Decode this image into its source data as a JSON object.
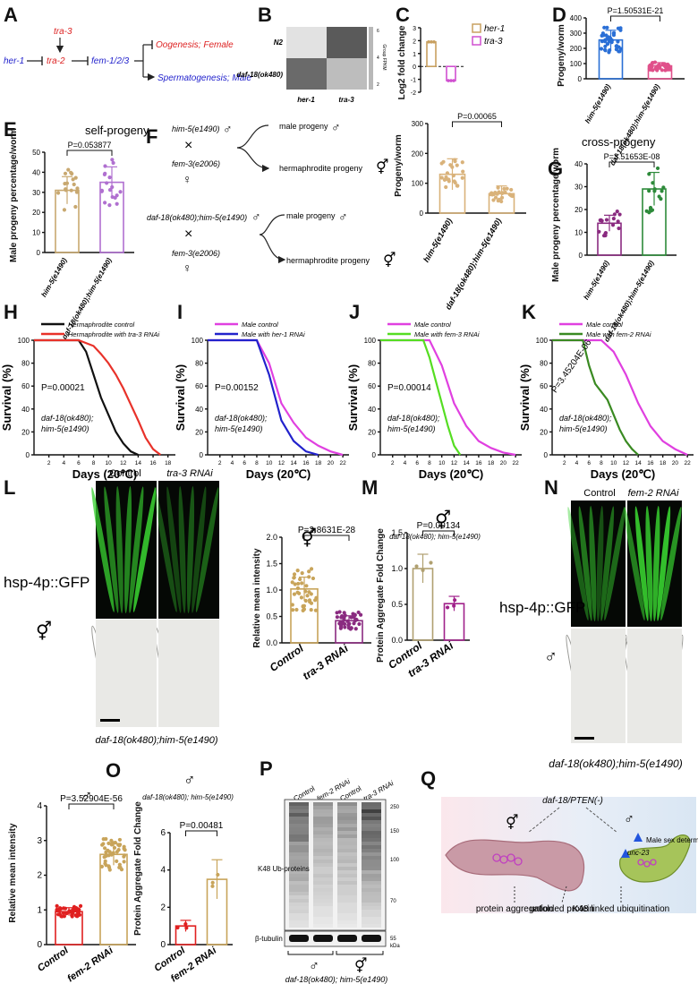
{
  "panels": [
    "A",
    "B",
    "C",
    "D",
    "E",
    "F",
    "G",
    "H",
    "I",
    "J",
    "K",
    "L",
    "M",
    "N",
    "O",
    "P",
    "Q"
  ],
  "A": {
    "her1": "her-1",
    "tra3": "tra-3",
    "tra2": "tra-2",
    "fem": "fem-1/2/3",
    "oogenesis": "Oogenesis; Female",
    "spermatogenesis": "Spermatogenesis; Male"
  },
  "B": {
    "rows": [
      "N2",
      "daf-18(ok480)"
    ],
    "cols": [
      "her-1",
      "tra-3"
    ],
    "scale_label": "Group FPKM",
    "scale_ticks": [
      "6",
      "4",
      "2"
    ],
    "cells": [
      [
        "#e2e2e2",
        "#5a5a5a"
      ],
      [
        "#6a6a6a",
        "#bdbdbd"
      ]
    ]
  },
  "C": {
    "ylabel": "Log2 fold change",
    "y_ticks": [
      "3",
      "2",
      "1",
      "0",
      "-1",
      "-2"
    ],
    "legend": [
      "her-1",
      "tra-3"
    ],
    "colors": [
      "#c8a060",
      "#d050d0"
    ]
  },
  "D": {
    "pvalue": "P=1.50531E-21",
    "ylabel": "Progeny/worm",
    "y_ticks": [
      "0",
      "100",
      "200",
      "300",
      "400"
    ],
    "xcats": [
      "him-5(e1490)",
      "daf-18(ok480);him-5(e1490)"
    ]
  },
  "E": {
    "title": "self-progeny",
    "pvalue": "P=0.053877",
    "ylabel": "Male progeny percentage/worm",
    "y_ticks": [
      "0",
      "10",
      "20",
      "30",
      "40",
      "50"
    ],
    "xcats": [
      "him-5(e1490)",
      "daf-18(ok480);him-5(e1490)"
    ]
  },
  "F": {
    "g1": "him-5(e1490)",
    "g2": "fem-3(e2006)",
    "g3": "daf-18(ok480);him-5(e1490)",
    "g4": "fem-3(e2006)",
    "male": "male progeny",
    "herm": "hermaphrodite progeny",
    "pvalue": "P=0.00065",
    "ylabel": "Progeny/worm",
    "y_ticks": [
      "0",
      "100",
      "200",
      "300"
    ],
    "xcats": [
      "him-5(e1490)",
      "daf-18(ok480);him-5(e1490)"
    ]
  },
  "G": {
    "title": "cross-progeny",
    "pvalue": "P=3.51653E-08",
    "ylabel": "Male progeny percentage/worm",
    "y_ticks": [
      "0",
      "10",
      "20",
      "30",
      "40"
    ],
    "xcats": [
      "him-5(e1490)",
      "daf-18(ok480);him-5(e1490)"
    ]
  },
  "H": {
    "legend": [
      "Hermaphrodite control",
      "Hermaphrodite with tra-3 RNAi"
    ],
    "pvalue": "P=0.00021",
    "strain": "daf-18(ok480); him-5(e1490)",
    "xlabel": "Days (20℃)",
    "ylabel": "Survival (%)",
    "x_ticks": [
      "2",
      "4",
      "6",
      "8",
      "10",
      "12",
      "14",
      "16",
      "18"
    ],
    "y_ticks": [
      "0",
      "20",
      "40",
      "60",
      "80",
      "100"
    ]
  },
  "I": {
    "legend": [
      "Male control",
      "Male with her-1 RNAi"
    ],
    "pvalue": "P=0.00152",
    "strain": "daf-18(ok480); him-5(e1490)",
    "xlabel": "Days (20℃)",
    "ylabel": "Survival (%)",
    "x_ticks": [
      "2",
      "4",
      "6",
      "8",
      "10",
      "12",
      "14",
      "16",
      "18",
      "20",
      "22"
    ],
    "y_ticks": [
      "0",
      "20",
      "40",
      "60",
      "80",
      "100"
    ]
  },
  "J": {
    "legend": [
      "Male control",
      "Male with fem-3 RNAi"
    ],
    "pvalue": "P=0.00014",
    "strain": "daf-18(ok480); him-5(e1490)",
    "xlabel": "Days (20℃)",
    "ylabel": "Survival (%)",
    "x_ticks": [
      "2",
      "4",
      "6",
      "8",
      "10",
      "12",
      "14",
      "16",
      "18",
      "20",
      "22"
    ],
    "y_ticks": [
      "0",
      "20",
      "40",
      "60",
      "80",
      "100"
    ]
  },
  "K": {
    "legend": [
      "Male control",
      "Male with fem-2 RNAi"
    ],
    "pvalue": "P=3.45204E-06",
    "strain": "daf-18(ok480); him-5(e1490)",
    "xlabel": "Days (20℃)",
    "ylabel": "Survival (%)",
    "x_ticks": [
      "2",
      "4",
      "6",
      "8",
      "10",
      "12",
      "14",
      "16",
      "18",
      "20",
      "22"
    ],
    "y_ticks": [
      "0",
      "20",
      "40",
      "60",
      "80",
      "100"
    ]
  },
  "L": {
    "control": "Control",
    "rnai": "tra-3 RNAi",
    "reporter": "hsp-4p::GFP",
    "strain": "daf-18(ok480);him-5(e1490)",
    "pvalue": "P=2.8631E-28",
    "ylabel": "Relative mean intensity",
    "y_ticks": [
      "0.0",
      "0.5",
      "1.0",
      "1.5",
      "2.0"
    ],
    "xcats": [
      "Control",
      "tra-3 RNAi"
    ]
  },
  "M": {
    "strain": "daf-18(ok480); him-5(e1490)",
    "pvalue": "P=0.00134",
    "ylabel": "Protein Aggregate Fold Change",
    "y_ticks": [
      "0.0",
      "0.5",
      "1.0",
      "1.5"
    ],
    "xcats": [
      "Control",
      "tra-3 RNAi"
    ]
  },
  "N": {
    "control": "Control",
    "rnai": "fem-2 RNAi",
    "reporter": "hsp-4p::GFP",
    "strain": "daf-18(ok480);him-5(e1490)"
  },
  "O1": {
    "pvalue": "P=3.52904E-56",
    "ylabel": "Relative mean intensity",
    "y_ticks": [
      "0",
      "1",
      "2",
      "3",
      "4"
    ],
    "xcats": [
      "Control",
      "fem-2 RNAi"
    ]
  },
  "O2": {
    "strain": "daf-18(ok480); him-5(e1490)",
    "pvalue": "P=0.00481",
    "ylabel": "Protein Aggregate Fold Change",
    "y_ticks": [
      "0",
      "2",
      "4",
      "6"
    ],
    "xcats": [
      "Control",
      "fem-2 RNAi"
    ]
  },
  "P": {
    "lanes": [
      "Control",
      "fem-2 RNAi",
      "Control",
      "tra-3 RNAi"
    ],
    "band1": "K48 Ub-proteins",
    "band2": "β-tubulin",
    "kda": [
      "250",
      "150",
      "100",
      "70",
      "55"
    ],
    "unit": "kDa",
    "strain": "daf-18(ok480); him-5(e1490)"
  },
  "Q": {
    "daf": "daf-18/PTEN(-)",
    "male_sex": "Male sex determination",
    "unc": "unc-23",
    "agg": "protein aggregation",
    "unf": "unfolded protein",
    "k48": "K48 linked ubiquitination"
  },
  "chart_data": [
    {
      "type": "bar",
      "panel": "C",
      "categories": [
        "her-1",
        "tra-3"
      ],
      "values": [
        1.9,
        -1.1
      ],
      "ylabel": "Log2 fold change",
      "ylim": [
        -2,
        3
      ]
    },
    {
      "type": "bar",
      "panel": "D",
      "categories": [
        "him-5(e1490)",
        "daf-18(ok480);him-5(e1490)"
      ],
      "values": [
        255,
        85
      ],
      "ylim": [
        0,
        400
      ]
    },
    {
      "type": "bar",
      "panel": "E",
      "categories": [
        "him-5(e1490)",
        "daf-18(ok480);him-5(e1490)"
      ],
      "values": [
        31,
        35
      ],
      "ylim": [
        0,
        50
      ]
    },
    {
      "type": "bar",
      "panel": "F",
      "categories": [
        "him-5(e1490)",
        "daf-18(ok480);him-5(e1490)"
      ],
      "values": [
        130,
        65
      ],
      "ylim": [
        0,
        300
      ]
    },
    {
      "type": "bar",
      "panel": "G",
      "categories": [
        "him-5(e1490)",
        "daf-18(ok480);him-5(e1490)"
      ],
      "values": [
        14,
        29
      ],
      "ylim": [
        0,
        40
      ]
    },
    {
      "type": "line",
      "panel": "H",
      "series": [
        {
          "name": "Hermaphrodite control",
          "x": [
            0,
            6,
            7,
            8,
            9,
            10,
            11,
            12,
            13,
            14
          ],
          "y": [
            100,
            100,
            90,
            70,
            50,
            35,
            20,
            10,
            3,
            0
          ]
        },
        {
          "name": "Hermaphrodite with tra-3 RNAi",
          "x": [
            0,
            6,
            8,
            9,
            10,
            11,
            12,
            13,
            14,
            15,
            16,
            17
          ],
          "y": [
            100,
            100,
            95,
            88,
            80,
            70,
            58,
            44,
            30,
            15,
            5,
            0
          ]
        }
      ]
    },
    {
      "type": "line",
      "panel": "I",
      "series": [
        {
          "name": "Male control",
          "x": [
            0,
            8,
            10,
            12,
            14,
            16,
            18,
            20,
            22
          ],
          "y": [
            100,
            100,
            80,
            45,
            28,
            15,
            8,
            3,
            0
          ]
        },
        {
          "name": "Male with her-1 RNAi",
          "x": [
            0,
            8,
            10,
            11,
            12,
            14,
            16,
            18
          ],
          "y": [
            100,
            100,
            70,
            50,
            30,
            12,
            3,
            0
          ]
        }
      ]
    },
    {
      "type": "line",
      "panel": "J",
      "series": [
        {
          "name": "Male control",
          "x": [
            0,
            8,
            10,
            12,
            14,
            16,
            18,
            20,
            22
          ],
          "y": [
            100,
            100,
            78,
            45,
            25,
            12,
            6,
            2,
            0
          ]
        },
        {
          "name": "Male with fem-3 RNAi",
          "x": [
            0,
            7,
            8,
            9,
            10,
            11,
            12,
            13
          ],
          "y": [
            100,
            100,
            85,
            65,
            45,
            25,
            8,
            0
          ]
        }
      ]
    },
    {
      "type": "line",
      "panel": "K",
      "series": [
        {
          "name": "Male control",
          "x": [
            0,
            8,
            10,
            12,
            14,
            16,
            18,
            20,
            22
          ],
          "y": [
            100,
            100,
            90,
            70,
            45,
            25,
            12,
            5,
            0
          ]
        },
        {
          "name": "Male with fem-2 RNAi",
          "x": [
            0,
            5,
            6,
            7,
            8,
            9,
            10,
            11,
            12,
            13,
            14
          ],
          "y": [
            100,
            100,
            78,
            62,
            55,
            48,
            35,
            22,
            12,
            5,
            0
          ]
        }
      ]
    },
    {
      "type": "bar",
      "panel": "L",
      "categories": [
        "Control",
        "tra-3 RNAi"
      ],
      "values": [
        1.02,
        0.42
      ],
      "ylim": [
        0,
        2.0
      ]
    },
    {
      "type": "bar",
      "panel": "M",
      "categories": [
        "Control",
        "tra-3 RNAi"
      ],
      "values": [
        1.0,
        0.51
      ],
      "ylim": [
        0,
        1.5
      ]
    },
    {
      "type": "bar",
      "panel": "O1",
      "categories": [
        "Control",
        "fem-2 RNAi"
      ],
      "values": [
        0.95,
        2.6
      ],
      "ylim": [
        0,
        4
      ]
    },
    {
      "type": "bar",
      "panel": "O2",
      "categories": [
        "Control",
        "fem-2 RNAi"
      ],
      "values": [
        1.0,
        3.5
      ],
      "ylim": [
        0,
        6
      ]
    }
  ]
}
